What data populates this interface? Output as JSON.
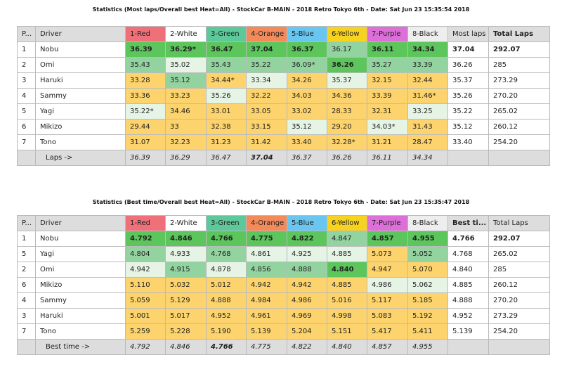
{
  "colors": {
    "red": "#f0707a",
    "white": "#ffffff",
    "green": "#5dc99a",
    "orange": "#f48a5a",
    "blue": "#69c6f0",
    "yellow": "#f7d21e",
    "purple": "#dc6fd8",
    "black": "#eeeeee"
  },
  "laps": {
    "title": "Statistics (Most laps/Overall best Heat=All) - StockCar B-MAIN - 2018 Retro Tokyo 6th - Date: Sat Jun 23 15:35:54 2018",
    "headers": [
      "P...",
      "Driver",
      "1-Red",
      "2-White",
      "3-Green",
      "4-Orange",
      "5-Blue",
      "6-Yellow",
      "7-Purple",
      "8-Black",
      "Most laps",
      "Total Laps"
    ],
    "rows": [
      {
        "pos": "1",
        "driver": "Nobu",
        "cells": [
          "36.39",
          "36.29*",
          "36.47",
          "37.04",
          "36.37",
          "36.17",
          "36.11",
          "34.34"
        ],
        "shade": "gggggmgg",
        "best": "37.04",
        "total": "292.07"
      },
      {
        "pos": "2",
        "driver": "Omi",
        "cells": [
          "35.43",
          "35.02",
          "35.43",
          "35.22",
          "36.09*",
          "36.26",
          "35.27",
          "33.39"
        ],
        "shade": "mlmmmgmm",
        "best": "36.26",
        "total": "285"
      },
      {
        "pos": "3",
        "driver": "Haruki",
        "cells": [
          "33.28",
          "35.12",
          "34.44*",
          "33.34",
          "34.26",
          "35.37",
          "32.15",
          "32.44"
        ],
        "shade": "ymylylyy",
        "best": "35.37",
        "total": "273.29"
      },
      {
        "pos": "4",
        "driver": "Sammy",
        "cells": [
          "33.36",
          "33.23",
          "35.26",
          "32.22",
          "34.03",
          "34.36",
          "33.39",
          "31.46*"
        ],
        "shade": "yylyyyyy",
        "best": "35.26",
        "total": "270.20"
      },
      {
        "pos": "5",
        "driver": "Yagi",
        "cells": [
          "35.22*",
          "34.46",
          "33.01",
          "33.05",
          "33.02",
          "28.33",
          "32.31",
          "33.25"
        ],
        "shade": "lyyyyyyl",
        "best": "35.22",
        "total": "265.02"
      },
      {
        "pos": "6",
        "driver": "Mikizo",
        "cells": [
          "29.44",
          "33",
          "32.38",
          "33.15",
          "35.12",
          "29.20",
          "34.03*",
          "31.43"
        ],
        "shade": "yyyylyly",
        "best": "35.12",
        "total": "260.12"
      },
      {
        "pos": "7",
        "driver": "Tono",
        "cells": [
          "31.07",
          "32.23",
          "31.23",
          "31.42",
          "33.40",
          "32.28*",
          "31.21",
          "28.47"
        ],
        "shade": "yyyyyyyy",
        "best": "33.40",
        "total": "254.20"
      }
    ],
    "footer": {
      "label": "Laps ->",
      "cells": [
        "36.39",
        "36.29",
        "36.47",
        "37.04",
        "36.37",
        "36.26",
        "36.11",
        "34.34"
      ],
      "bold_index": 3
    }
  },
  "times": {
    "title": "Statistics (Best time/Overall best Heat=All) - StockCar B-MAIN - 2018 Retro Tokyo 6th - Date: Sat Jun 23 15:35:47 2018",
    "headers": [
      "P...",
      "Driver",
      "1-Red",
      "2-White",
      "3-Green",
      "4-Orange",
      "5-Blue",
      "6-Yellow",
      "7-Purple",
      "8-Black",
      "Best ti...",
      "Total Laps"
    ],
    "rows": [
      {
        "pos": "1",
        "driver": "Nobu",
        "cells": [
          "4.792",
          "4.846",
          "4.766",
          "4.775",
          "4.822",
          "4.847",
          "4.857",
          "4.955"
        ],
        "shade": "gggggmgg",
        "best": "4.766",
        "total": "292.07"
      },
      {
        "pos": "5",
        "driver": "Yagi",
        "cells": [
          "4.804",
          "4.933",
          "4.768",
          "4.861",
          "4.925",
          "4.885",
          "5.073",
          "5.052"
        ],
        "shade": "mlmlllym",
        "best": "4.768",
        "total": "265.02"
      },
      {
        "pos": "2",
        "driver": "Omi",
        "cells": [
          "4.942",
          "4.915",
          "4.878",
          "4.856",
          "4.888",
          "4.840",
          "4.947",
          "5.070"
        ],
        "shade": "lmlmmgyy",
        "best": "4.840",
        "total": "285"
      },
      {
        "pos": "6",
        "driver": "Mikizo",
        "cells": [
          "5.110",
          "5.032",
          "5.012",
          "4.942",
          "4.942",
          "4.885",
          "4.986",
          "5.062"
        ],
        "shade": "yyyyyyll",
        "best": "4.885",
        "total": "260.12"
      },
      {
        "pos": "4",
        "driver": "Sammy",
        "cells": [
          "5.059",
          "5.129",
          "4.888",
          "4.984",
          "4.986",
          "5.016",
          "5.117",
          "5.185"
        ],
        "shade": "yyyyyyyy",
        "best": "4.888",
        "total": "270.20"
      },
      {
        "pos": "3",
        "driver": "Haruki",
        "cells": [
          "5.001",
          "5.017",
          "4.952",
          "4.961",
          "4.969",
          "4.998",
          "5.083",
          "5.192"
        ],
        "shade": "yyyyyyyy",
        "best": "4.952",
        "total": "273.29"
      },
      {
        "pos": "7",
        "driver": "Tono",
        "cells": [
          "5.259",
          "5.228",
          "5.190",
          "5.139",
          "5.204",
          "5.151",
          "5.417",
          "5.411"
        ],
        "shade": "yyyyyyyy",
        "best": "5.139",
        "total": "254.20"
      }
    ],
    "footer": {
      "label": "Best time ->",
      "cells": [
        "4.792",
        "4.846",
        "4.766",
        "4.775",
        "4.822",
        "4.840",
        "4.857",
        "4.955"
      ],
      "bold_index": 2
    }
  }
}
